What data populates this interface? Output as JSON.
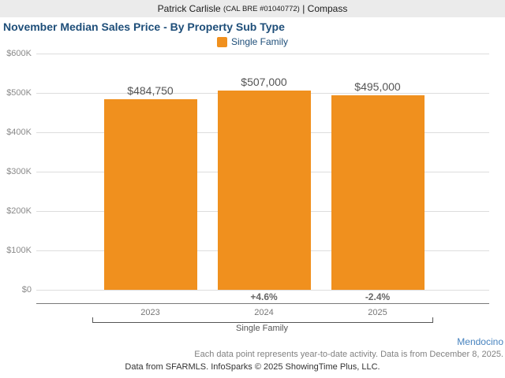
{
  "header": {
    "agent_name": "Patrick Carlisle",
    "license": "(CAL BRE #01040772)",
    "separator": "|",
    "brokerage": "Compass"
  },
  "title": "November Median Sales Price - By Property Sub Type",
  "legend": {
    "label": "Single Family",
    "color": "#f0901e"
  },
  "chart_data": {
    "type": "bar",
    "categories": [
      "2023",
      "2024",
      "2025"
    ],
    "values": [
      484750,
      507000,
      495000
    ],
    "value_labels": [
      "$484,750",
      "$507,000",
      "$495,000"
    ],
    "pct_change_labels": [
      "",
      "+4.6%",
      "-2.4%"
    ],
    "title": "November Median Sales Price - By Property Sub Type",
    "xlabel": "Single Family",
    "ylabel": "",
    "ylim": [
      0,
      600000
    ],
    "ytick_step": 100000,
    "ytick_labels": [
      "$0",
      "$100K",
      "$200K",
      "$300K",
      "$400K",
      "$500K",
      "$600K"
    ],
    "grid": true,
    "legend_entries": [
      "Single Family"
    ],
    "legend_position": "top-center",
    "bar_color": "#f0901e",
    "group_label": "Single Family"
  },
  "footnotes": {
    "region": "Mendocino",
    "note": "Each data point represents year-to-date activity. Data is from December 8, 2025.",
    "attribution": "Data from SFARMLS. InfoSparks © 2025 ShowingTime Plus, LLC."
  }
}
